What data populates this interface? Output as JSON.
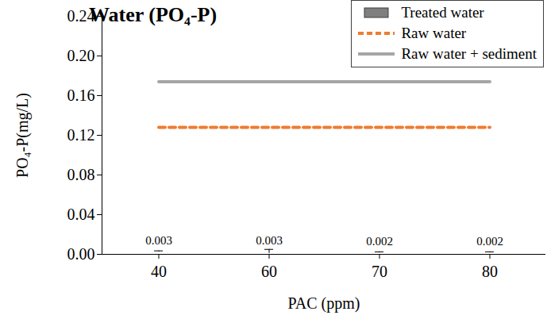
{
  "chart_data": {
    "type": "bar",
    "title": "Water (PO₄-P)",
    "x_label": "PAC (ppm)",
    "y_label": "PO₄-P(mg/L)",
    "categories": [
      "40",
      "60",
      "70",
      "80"
    ],
    "series": [
      {
        "name": "Treated water",
        "type": "bar",
        "color": "#7f7f7f",
        "values": [
          0.003,
          0.003,
          0.002,
          0.002
        ],
        "errors": [
          0.0005,
          0.002,
          0.0005,
          0.0005
        ]
      },
      {
        "name": "Raw water",
        "type": "line",
        "color": "#ed7d31",
        "line_style": "dashed",
        "values": [
          0.128,
          0.128,
          0.128,
          0.128
        ]
      },
      {
        "name": "Raw water + sediment",
        "type": "line",
        "color": "#a6a6a6",
        "line_style": "solid",
        "values": [
          0.174,
          0.174,
          0.174,
          0.174
        ]
      }
    ],
    "ylim": [
      0,
      0.24
    ],
    "yticks": [
      {
        "value": 0,
        "label": "0.00"
      },
      {
        "value": 0.04,
        "label": "0.04"
      },
      {
        "value": 0.08,
        "label": "0.08"
      },
      {
        "value": 0.12,
        "label": "0.12"
      },
      {
        "value": 0.16,
        "label": "0.16"
      },
      {
        "value": 0.2,
        "label": "0.20"
      },
      {
        "value": 0.24,
        "label": "0.24"
      }
    ],
    "data_labels": true,
    "grid": false,
    "legend": "top-right"
  }
}
